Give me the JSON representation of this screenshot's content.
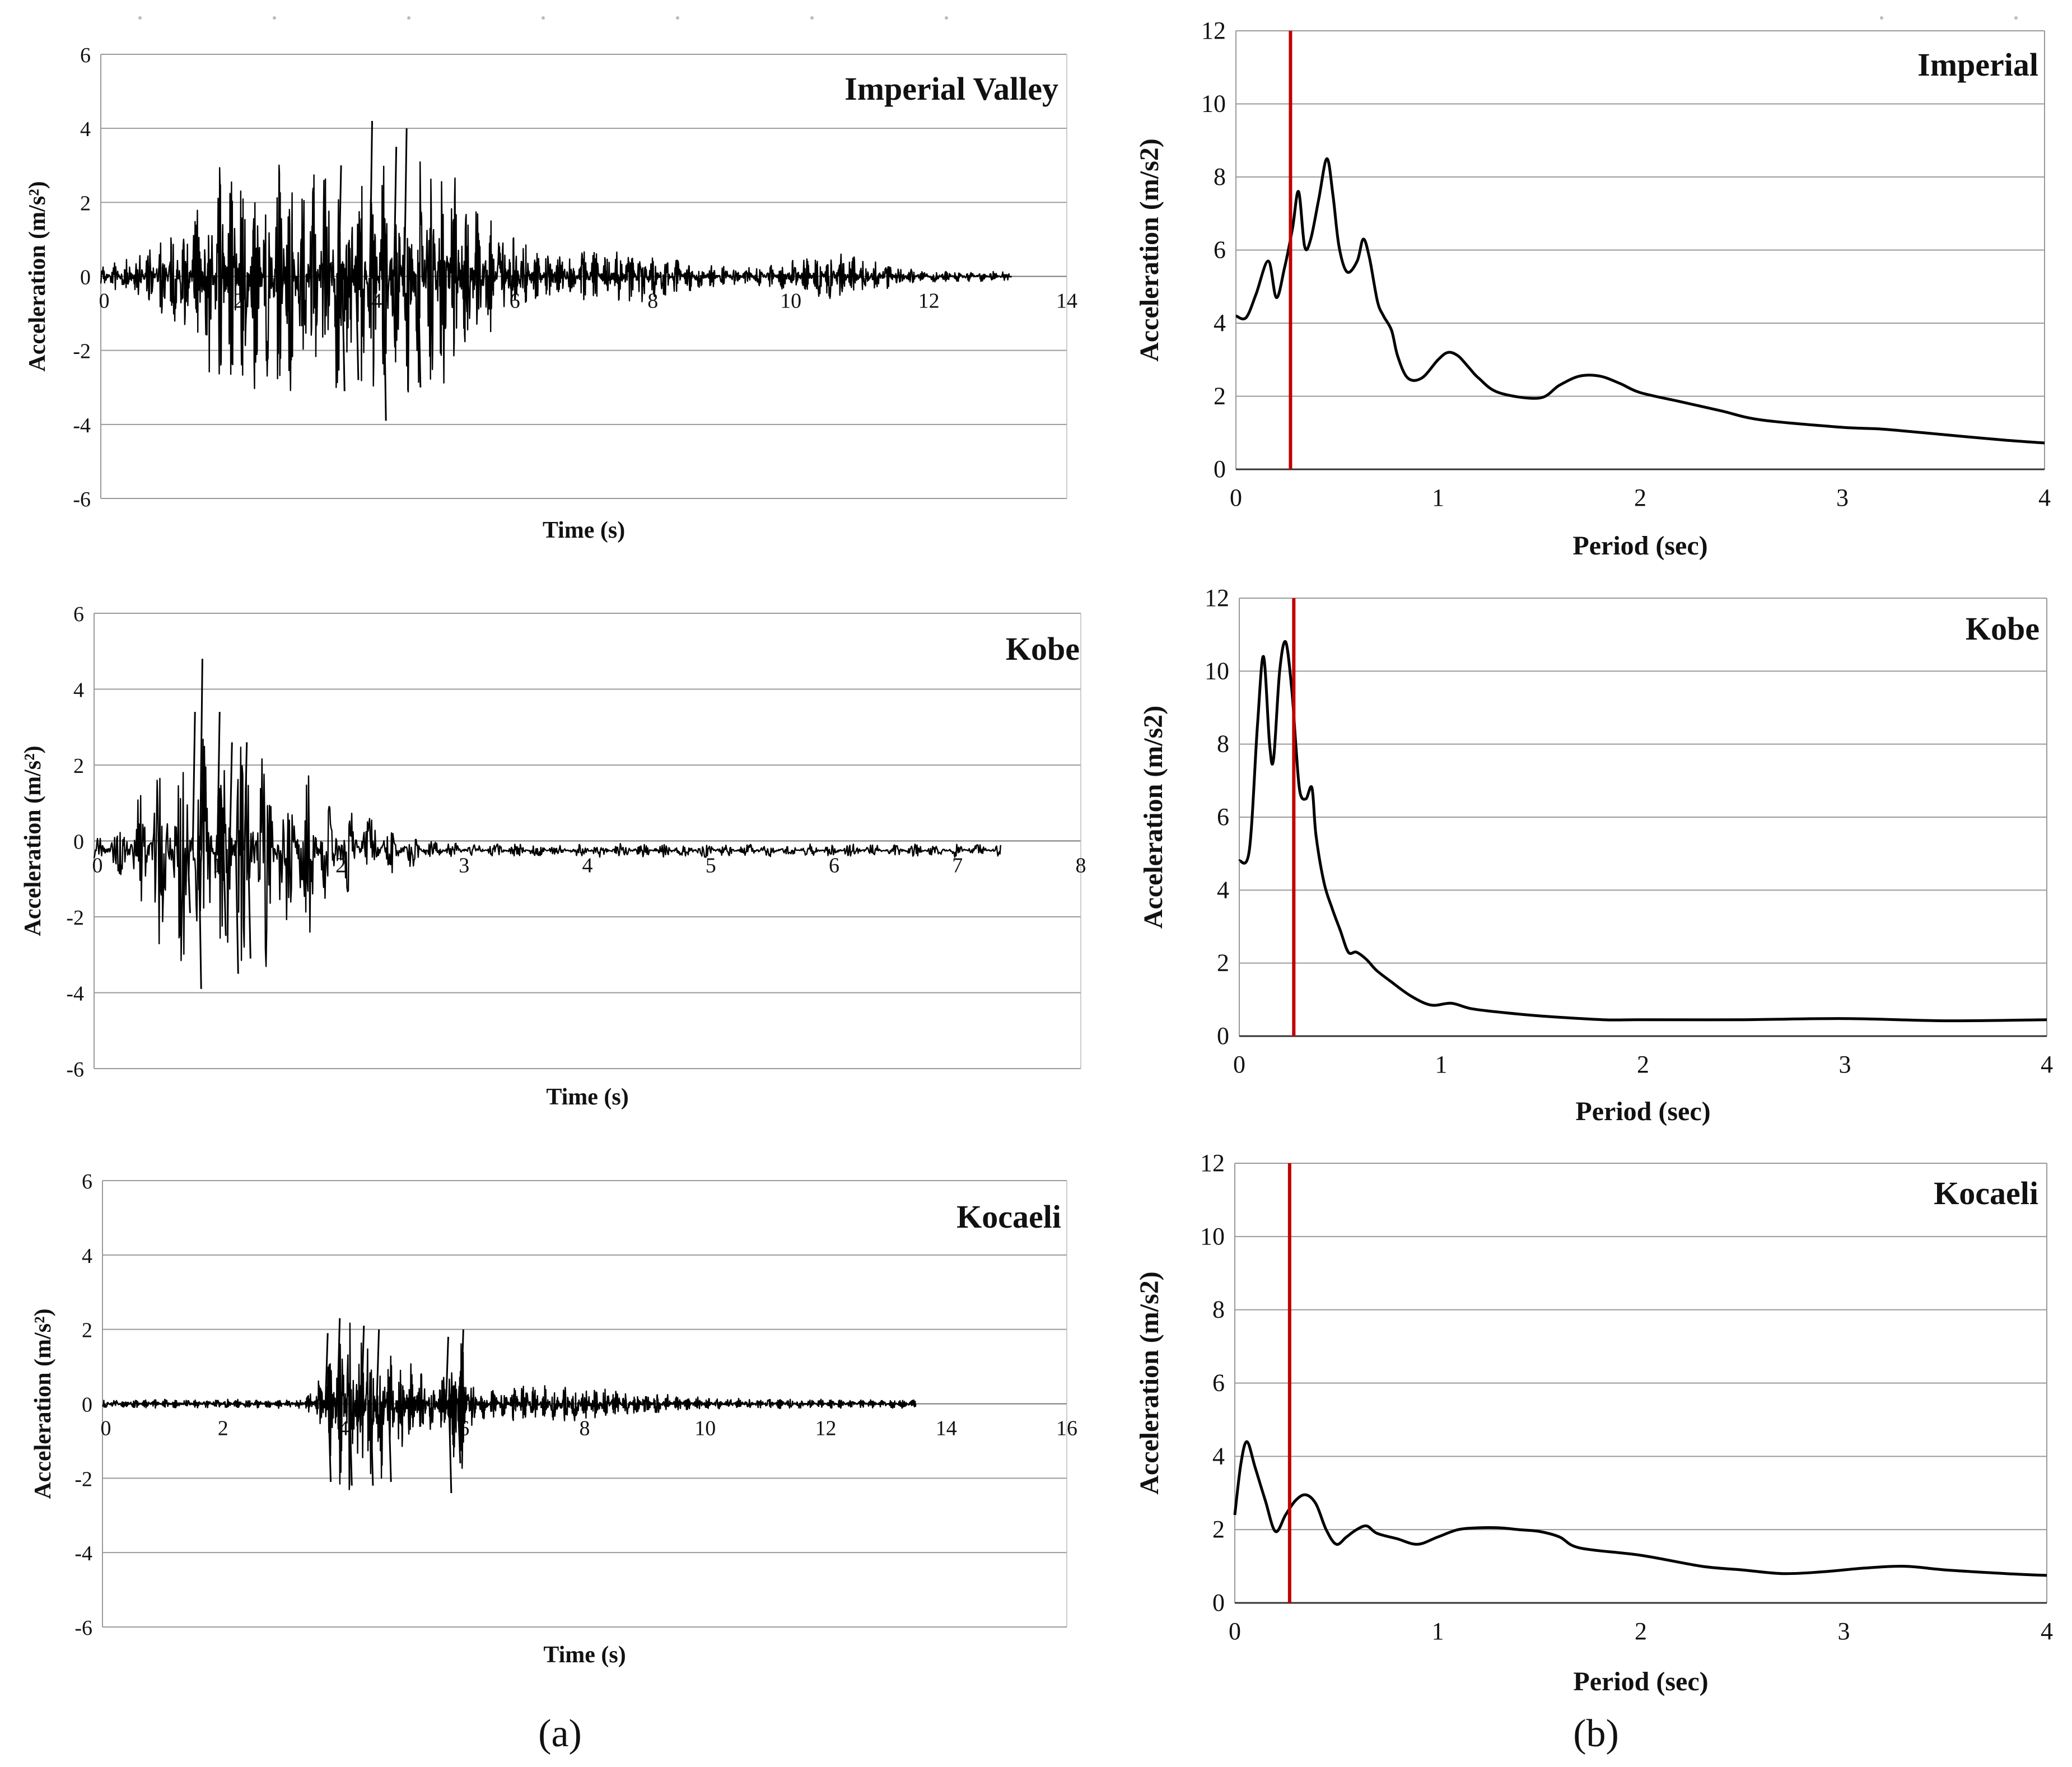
{
  "chart_data": [
    {
      "id": "th_imperial",
      "type": "line",
      "title": "Imperial Valley",
      "xlabel": "Time  (s)",
      "ylabel": "Acceleration (m/s²)",
      "xlim": [
        0,
        14
      ],
      "ylim": [
        -6,
        6
      ],
      "xticks": [
        0,
        2,
        4,
        6,
        8,
        10,
        12,
        14
      ],
      "yticks": [
        -6,
        -4,
        -2,
        0,
        2,
        4,
        6
      ],
      "series": [
        {
          "name": "Imperial Valley",
          "color": "#000000",
          "duration": 13.2,
          "bursts": [
            [
              2.6,
              4.3,
              1.4
            ],
            [
              3.2,
              2.9,
              0.6
            ],
            [
              3.7,
              3.8,
              0.55
            ],
            [
              4.1,
              3.1,
              0.4
            ],
            [
              4.55,
              3.5,
              0.45
            ],
            [
              5.2,
              1.8,
              0.9
            ],
            [
              7.5,
              0.6,
              1.2
            ],
            [
              10.6,
              0.5,
              0.8
            ]
          ],
          "base": 0.15,
          "baseFreq": 3,
          "spikes": [
            [
              3.45,
              3.0
            ],
            [
              3.5,
              -3.1
            ],
            [
              3.9,
              4.2
            ],
            [
              4.1,
              -3.9
            ],
            [
              4.25,
              3.5
            ],
            [
              4.4,
              4.0
            ],
            [
              4.6,
              -3.0
            ],
            [
              3.7,
              -2.8
            ]
          ]
        }
      ]
    },
    {
      "id": "th_kobe",
      "type": "line",
      "title": "Kobe",
      "xlabel": "Time  (s)",
      "ylabel": "Acceleration  (m/s²)",
      "xlim": [
        0,
        8
      ],
      "ylim": [
        -6,
        6
      ],
      "xticks": [
        0,
        1,
        2,
        3,
        4,
        5,
        6,
        7,
        8
      ],
      "yticks": [
        -6,
        -4,
        -2,
        0,
        2,
        4,
        6
      ],
      "series": [
        {
          "name": "Kobe",
          "color": "#000000",
          "duration": 7.35,
          "bursts": [
            [
              0.9,
              4.0,
              0.5
            ],
            [
              1.3,
              3.0,
              0.45
            ],
            [
              1.9,
              0.9,
              0.6
            ]
          ],
          "base": 0.18,
          "baseFreq": 6,
          "offset": -0.25,
          "spikes": [
            [
              0.8,
              3.4
            ],
            [
              0.85,
              -3.9
            ],
            [
              0.86,
              4.8
            ],
            [
              1.05,
              -2.5
            ],
            [
              1.0,
              3.4
            ],
            [
              1.1,
              2.6
            ],
            [
              1.15,
              -3.5
            ],
            [
              1.22,
              2.6
            ],
            [
              1.25,
              -3.1
            ],
            [
              0.76,
              -1.9
            ]
          ]
        }
      ]
    },
    {
      "id": "th_kocaeli",
      "type": "line",
      "title": "Kocaeli",
      "xlabel": "Time  (s)",
      "ylabel": "Acceleration  (m/s²)",
      "xlim": [
        0,
        16
      ],
      "ylim": [
        -6,
        6
      ],
      "xticks": [
        0,
        2,
        4,
        6,
        8,
        10,
        12,
        14,
        16
      ],
      "yticks": [
        -6,
        -4,
        -2,
        0,
        2,
        4,
        6
      ],
      "series": [
        {
          "name": "Kocaeli",
          "color": "#000000",
          "duration": 13.5,
          "bursts": [
            [
              4.0,
              2.1,
              0.35
            ],
            [
              4.5,
              1.4,
              0.3
            ],
            [
              5.0,
              0.9,
              0.6
            ],
            [
              5.9,
              1.8,
              0.2
            ],
            [
              7.5,
              0.4,
              1.8
            ]
          ],
          "base": 0.12,
          "baseFreq": 3,
          "spikes": [
            [
              3.7,
              1.9
            ],
            [
              3.75,
              -2.1
            ],
            [
              3.9,
              2.3
            ],
            [
              4.1,
              -2.2
            ],
            [
              4.3,
              2.1
            ],
            [
              4.45,
              -2.2
            ],
            [
              4.55,
              2.0
            ],
            [
              4.75,
              -2.1
            ],
            [
              5.7,
              1.8
            ],
            [
              5.75,
              -2.4
            ],
            [
              5.95,
              2.0
            ],
            [
              5.9,
              -1.6
            ]
          ]
        }
      ]
    },
    {
      "id": "sp_imperial",
      "type": "line",
      "title": "Imperial",
      "xlabel": "Period (sec)",
      "ylabel": "Acceleration (m/s2)",
      "xlim": [
        0,
        4
      ],
      "ylim": [
        0,
        12
      ],
      "xticks": [
        0,
        1,
        2,
        3,
        4
      ],
      "yticks": [
        0,
        2,
        4,
        6,
        8,
        10,
        12
      ],
      "marker_x": 0.27,
      "series": [
        {
          "name": "Imperial",
          "color": "#000000",
          "x": [
            0,
            0.05,
            0.1,
            0.16,
            0.2,
            0.24,
            0.28,
            0.31,
            0.34,
            0.37,
            0.41,
            0.45,
            0.48,
            0.51,
            0.55,
            0.6,
            0.63,
            0.66,
            0.7,
            0.73,
            0.77,
            0.8,
            0.85,
            0.92,
            1.0,
            1.05,
            1.1,
            1.15,
            1.2,
            1.3,
            1.5,
            1.6,
            1.7,
            1.8,
            1.9,
            2.0,
            2.2,
            2.4,
            2.6,
            3.0,
            3.2,
            3.5,
            3.8,
            4.0
          ],
          "y": [
            4.2,
            4.15,
            4.8,
            5.7,
            4.7,
            5.5,
            6.6,
            7.6,
            6.1,
            6.3,
            7.4,
            8.5,
            7.5,
            6.1,
            5.4,
            5.7,
            6.3,
            5.8,
            4.6,
            4.2,
            3.8,
            3.1,
            2.5,
            2.5,
            3.0,
            3.2,
            3.1,
            2.8,
            2.5,
            2.1,
            1.95,
            2.3,
            2.55,
            2.55,
            2.35,
            2.1,
            1.85,
            1.6,
            1.35,
            1.15,
            1.1,
            0.95,
            0.8,
            0.72
          ]
        }
      ]
    },
    {
      "id": "sp_kobe",
      "type": "line",
      "title": "Kobe",
      "xlabel": "Period (sec)",
      "ylabel": "Acceleration (m/s2)",
      "xlim": [
        0,
        4
      ],
      "ylim": [
        0,
        12
      ],
      "xticks": [
        0,
        1,
        2,
        3,
        4
      ],
      "yticks": [
        0,
        2,
        4,
        6,
        8,
        10,
        12
      ],
      "marker_x": 0.27,
      "series": [
        {
          "name": "Kobe",
          "color": "#000000",
          "x": [
            0,
            0.05,
            0.09,
            0.12,
            0.15,
            0.17,
            0.2,
            0.23,
            0.26,
            0.28,
            0.3,
            0.33,
            0.36,
            0.38,
            0.42,
            0.46,
            0.5,
            0.54,
            0.58,
            0.63,
            0.68,
            0.75,
            0.85,
            0.95,
            1.05,
            1.15,
            1.3,
            1.5,
            1.8,
            2.0,
            2.5,
            3.0,
            3.5,
            4.0
          ],
          "y": [
            4.8,
            5.1,
            8.5,
            10.4,
            8.0,
            7.6,
            10.0,
            10.8,
            9.5,
            8.0,
            6.7,
            6.5,
            6.8,
            5.5,
            4.2,
            3.5,
            2.9,
            2.3,
            2.3,
            2.1,
            1.8,
            1.5,
            1.1,
            0.85,
            0.9,
            0.75,
            0.65,
            0.55,
            0.45,
            0.45,
            0.45,
            0.48,
            0.42,
            0.45
          ]
        }
      ]
    },
    {
      "id": "sp_kocaeli",
      "type": "line",
      "title": "Kocaeli",
      "xlabel": "Period (sec)",
      "ylabel": "Acceleration (m/s2)",
      "xlim": [
        0,
        4
      ],
      "ylim": [
        0,
        12
      ],
      "xticks": [
        0,
        1,
        2,
        3,
        4
      ],
      "yticks": [
        0,
        2,
        4,
        6,
        8,
        10,
        12
      ],
      "marker_x": 0.27,
      "series": [
        {
          "name": "Kocaeli",
          "color": "#000000",
          "x": [
            0,
            0.03,
            0.06,
            0.1,
            0.15,
            0.2,
            0.25,
            0.3,
            0.35,
            0.4,
            0.45,
            0.5,
            0.55,
            0.6,
            0.65,
            0.7,
            0.8,
            0.9,
            1.0,
            1.1,
            1.2,
            1.3,
            1.4,
            1.5,
            1.6,
            1.7,
            2.0,
            2.3,
            2.5,
            2.7,
            2.9,
            3.1,
            3.3,
            3.5,
            3.8,
            4.0
          ],
          "y": [
            2.4,
            3.8,
            4.4,
            3.7,
            2.8,
            1.95,
            2.4,
            2.8,
            2.95,
            2.7,
            2.0,
            1.6,
            1.8,
            2.0,
            2.1,
            1.9,
            1.75,
            1.6,
            1.8,
            2.0,
            2.05,
            2.05,
            2.0,
            1.95,
            1.8,
            1.5,
            1.3,
            1.0,
            0.9,
            0.8,
            0.85,
            0.95,
            1.0,
            0.9,
            0.8,
            0.75
          ]
        }
      ]
    }
  ],
  "panel_labels": {
    "a": "(a)",
    "b": "(b)"
  },
  "colors": {
    "line": "#000000",
    "grid": "#9a9a9a",
    "marker": "#c00000"
  }
}
